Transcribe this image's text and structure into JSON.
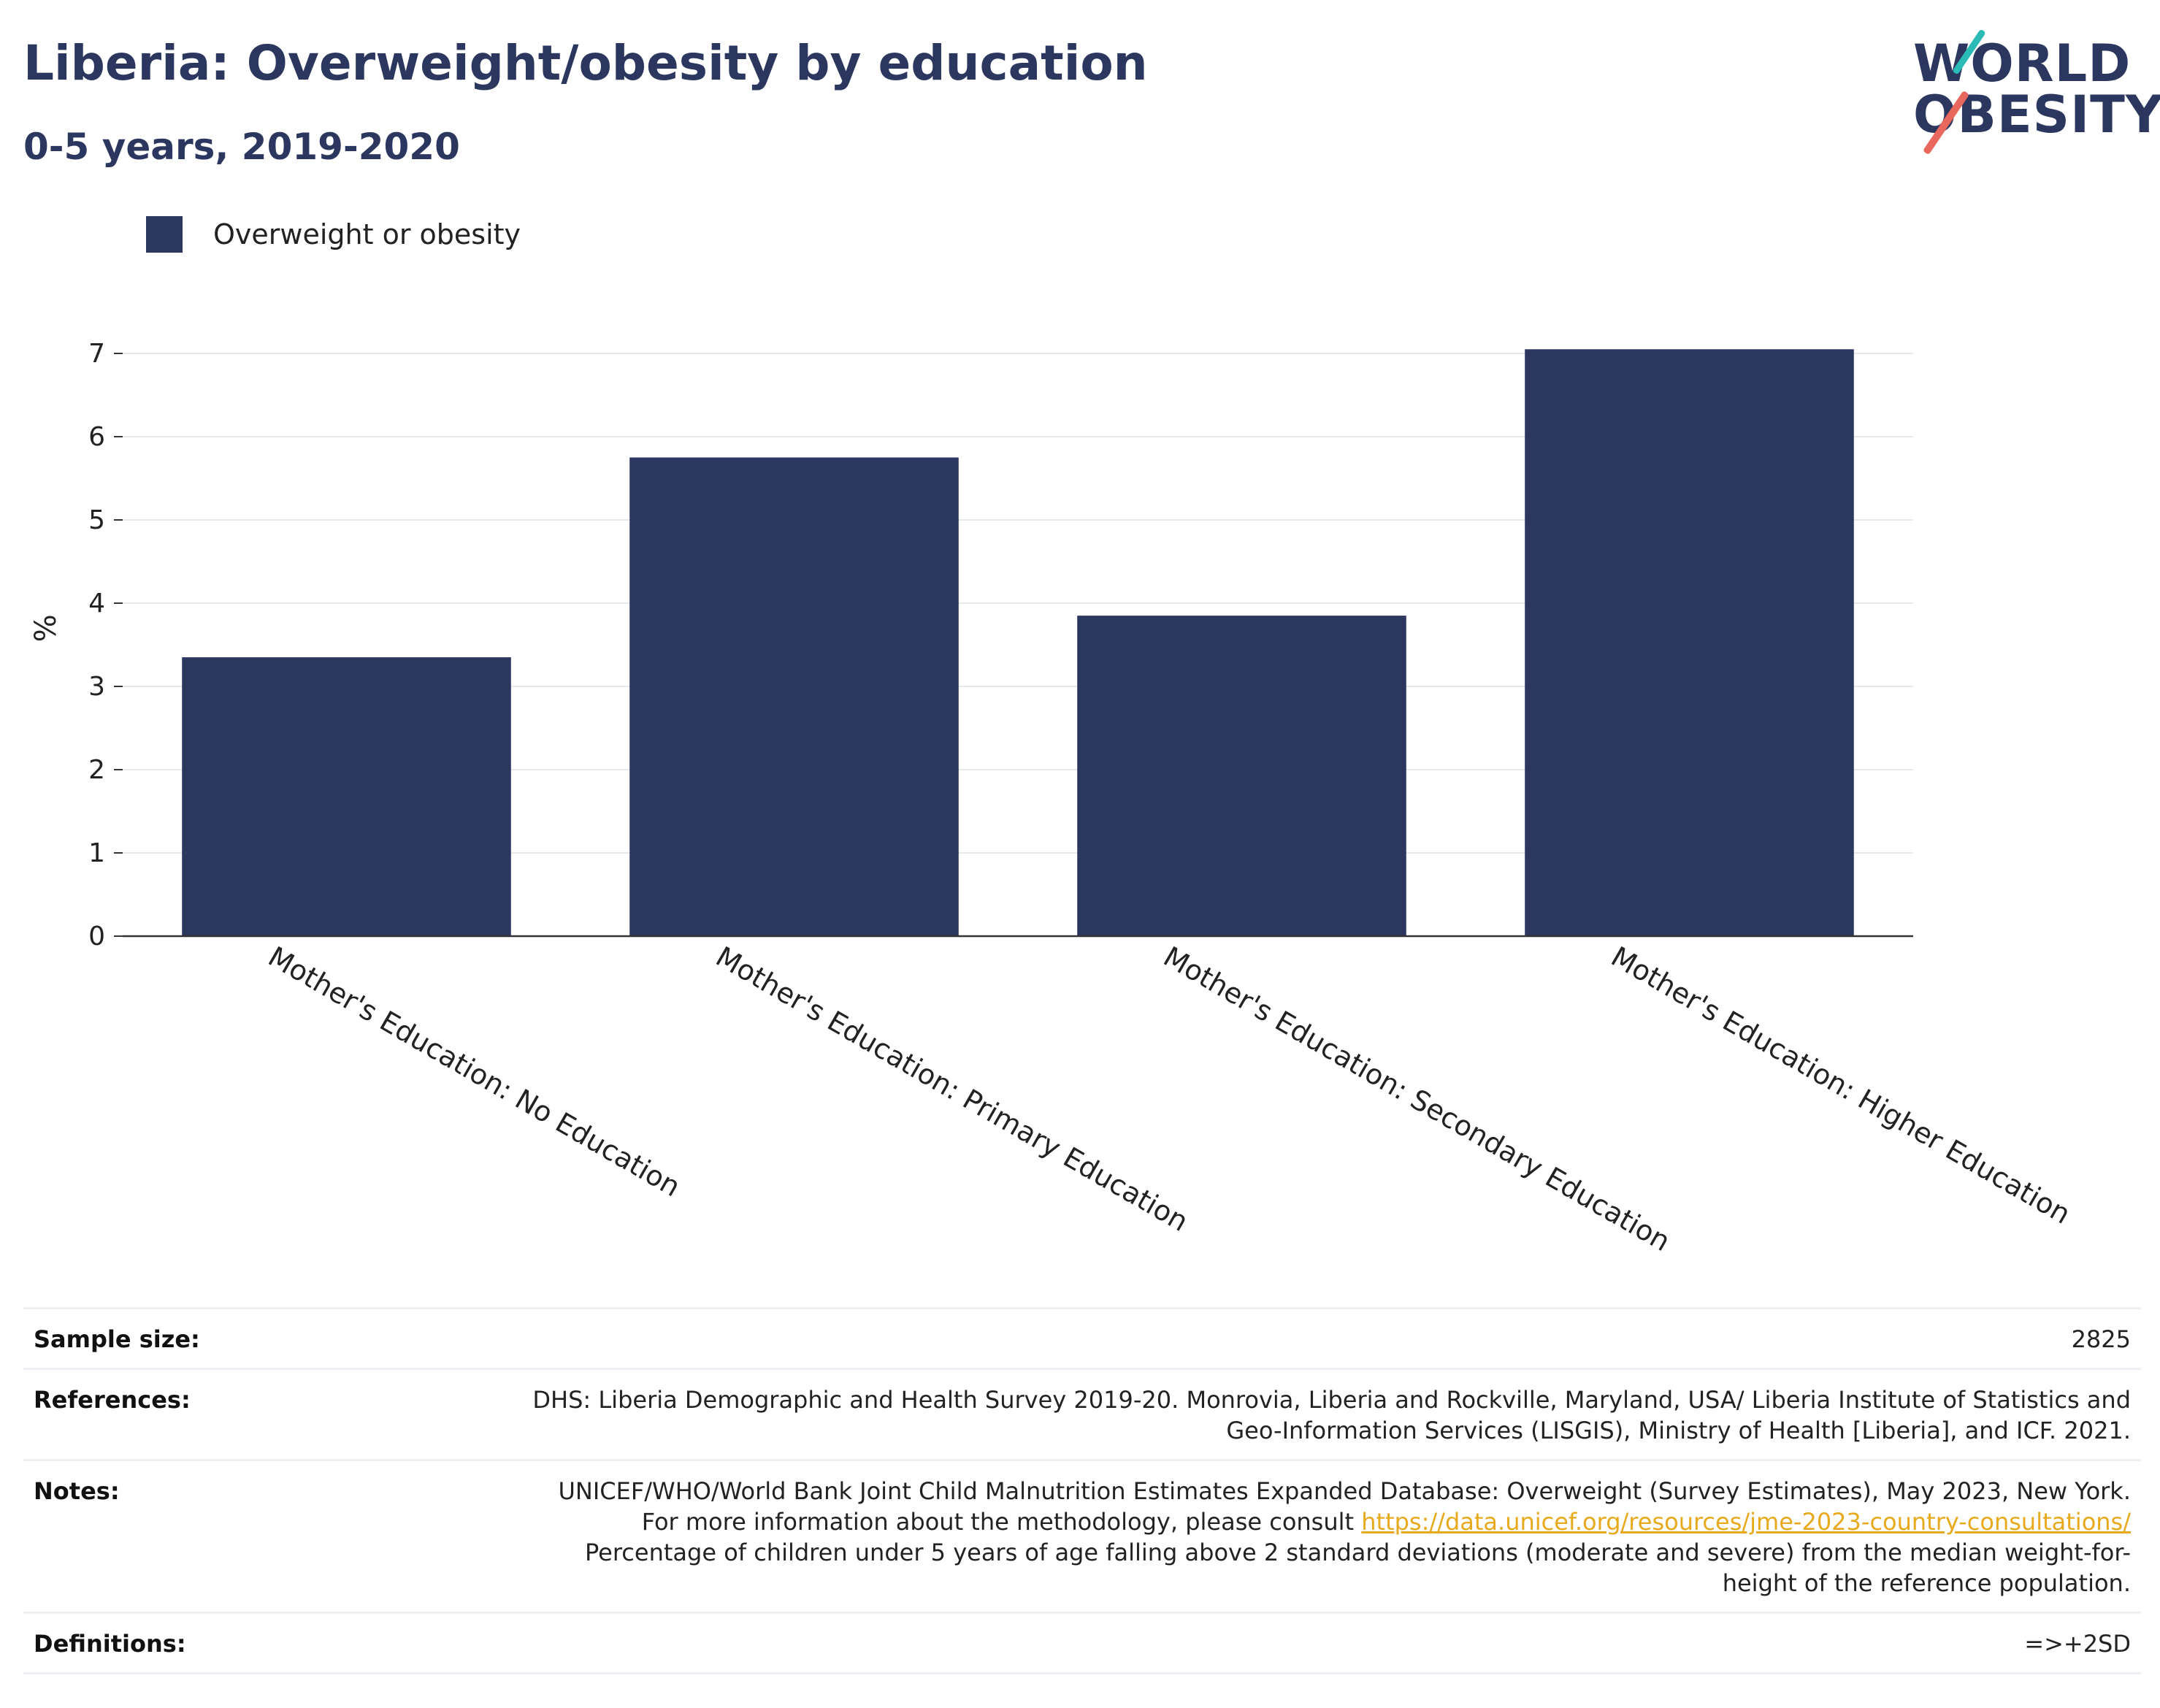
{
  "header": {
    "title": "Liberia: Overweight/obesity by education",
    "subtitle": "0-5 years, 2019-2020"
  },
  "logo": {
    "line1": "WORLD",
    "line2": "OBESITY",
    "colors": {
      "text": "#2b375f",
      "teal": "#2bbbb7",
      "coral": "#e8685d"
    }
  },
  "chart_data": {
    "type": "bar",
    "title": "",
    "xlabel": "",
    "ylabel": "%",
    "ylim": [
      0,
      7.4
    ],
    "yticks": [
      0,
      1,
      2,
      3,
      4,
      5,
      6,
      7
    ],
    "grid": true,
    "legend_position": "top-left",
    "categories": [
      "Mother's Education: No Education",
      "Mother's Education: Primary Education",
      "Mother's Education: Secondary Education",
      "Mother's Education: Higher Education"
    ],
    "series": [
      {
        "name": "Overweight or obesity",
        "color": "#2b375f",
        "values": [
          3.35,
          5.75,
          3.85,
          7.05
        ]
      }
    ]
  },
  "info": {
    "sample_size_label": "Sample size:",
    "sample_size_value": "2825",
    "references_label": "References:",
    "references_value": "DHS: Liberia Demographic and Health Survey 2019-20. Monrovia, Liberia and Rockville, Maryland, USA/ Liberia Institute of Statistics and Geo-Information Services (LISGIS), Ministry of Health [Liberia], and ICF. 2021.",
    "notes_label": "Notes:",
    "notes_text_before": "UNICEF/WHO/World Bank Joint Child Malnutrition Estimates Expanded Database: Overweight (Survey Estimates), May 2023, New York. For more information about the methodology, please consult ",
    "notes_link": "https://data.unicef.org/resources/jme-2023-country-consultations/",
    "notes_text_after": " Percentage of children under 5 years of age falling above 2 standard deviations (moderate and severe) from the median weight-for-height of the reference population.",
    "definitions_label": "Definitions:",
    "definitions_value": "=>+2SD"
  }
}
